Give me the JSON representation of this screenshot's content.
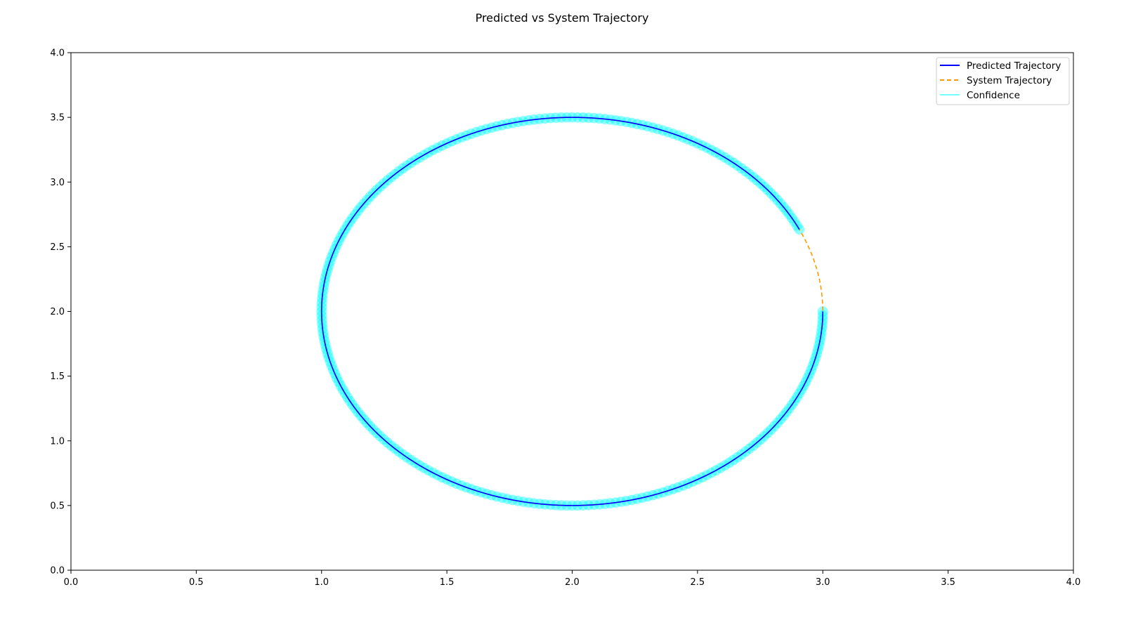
{
  "chart_data": {
    "type": "line",
    "title": "Predicted vs System Trajectory",
    "xlabel": "",
    "ylabel": "",
    "xlim": [
      0.0,
      4.0
    ],
    "ylim": [
      0.0,
      4.0
    ],
    "x_ticks": [
      "0.0",
      "0.5",
      "1.0",
      "1.5",
      "2.0",
      "2.5",
      "3.0",
      "3.5",
      "4.0"
    ],
    "y_ticks": [
      "0.0",
      "0.5",
      "1.0",
      "1.5",
      "2.0",
      "2.5",
      "3.0",
      "3.5",
      "4.0"
    ],
    "grid": false,
    "legend_position": "top-right",
    "trajectory_shape": {
      "center": [
        2.0,
        2.0
      ],
      "radius_x": 1.0,
      "radius_y": 1.5,
      "start_angle_deg": 0,
      "system_end_angle_deg": 360,
      "predicted_end_angle_deg": 335
    },
    "series": [
      {
        "name": "Predicted Trajectory",
        "style": "solid",
        "color": "#0000ff",
        "points": [
          [
            3.0,
            2.0
          ],
          [
            2.966,
            1.61
          ],
          [
            2.866,
            1.25
          ],
          [
            2.707,
            0.939
          ],
          [
            2.5,
            0.701
          ],
          [
            2.259,
            0.551
          ],
          [
            2.0,
            0.5
          ],
          [
            1.741,
            0.551
          ],
          [
            1.5,
            0.701
          ],
          [
            1.293,
            0.939
          ],
          [
            1.134,
            1.25
          ],
          [
            1.034,
            1.612
          ],
          [
            1.0,
            2.0
          ],
          [
            1.034,
            2.388
          ],
          [
            1.134,
            2.75
          ],
          [
            1.293,
            3.061
          ],
          [
            1.5,
            3.299
          ],
          [
            1.741,
            3.449
          ],
          [
            2.0,
            3.5
          ],
          [
            2.259,
            3.449
          ],
          [
            2.5,
            3.299
          ],
          [
            2.707,
            3.061
          ],
          [
            2.866,
            2.75
          ],
          [
            2.906,
            2.634
          ]
        ]
      },
      {
        "name": "System Trajectory",
        "style": "dashed",
        "color": "#ff9900",
        "points": [
          [
            3.0,
            2.0
          ],
          [
            2.966,
            1.61
          ],
          [
            2.866,
            1.25
          ],
          [
            2.707,
            0.939
          ],
          [
            2.5,
            0.701
          ],
          [
            2.259,
            0.551
          ],
          [
            2.0,
            0.5
          ],
          [
            1.741,
            0.551
          ],
          [
            1.5,
            0.701
          ],
          [
            1.293,
            0.939
          ],
          [
            1.134,
            1.25
          ],
          [
            1.034,
            1.612
          ],
          [
            1.0,
            2.0
          ],
          [
            1.034,
            2.388
          ],
          [
            1.134,
            2.75
          ],
          [
            1.293,
            3.061
          ],
          [
            1.5,
            3.299
          ],
          [
            1.741,
            3.449
          ],
          [
            2.0,
            3.5
          ],
          [
            2.259,
            3.449
          ],
          [
            2.5,
            3.299
          ],
          [
            2.707,
            3.061
          ],
          [
            2.866,
            2.75
          ],
          [
            2.966,
            2.388
          ],
          [
            3.0,
            2.0
          ]
        ]
      },
      {
        "name": "Confidence",
        "style": "band",
        "color": "#00ffff",
        "alpha": 0.5,
        "radius": 0.04
      }
    ]
  }
}
